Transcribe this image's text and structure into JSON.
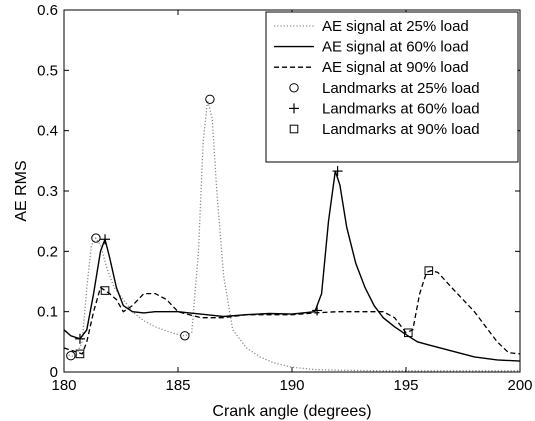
{
  "chart_data": {
    "type": "line",
    "xlabel": "Crank angle (degrees)",
    "ylabel": "AE RMS",
    "xlim": [
      180,
      200
    ],
    "ylim": [
      0,
      0.6
    ],
    "xticks": [
      180,
      185,
      190,
      195,
      200
    ],
    "yticks": [
      0,
      0.1,
      0.2,
      0.3,
      0.4,
      0.5,
      0.6
    ],
    "grid": false,
    "legend_position": "top-right",
    "series": [
      {
        "name": "AE signal at 25% load",
        "style": "dotted",
        "color": "#888888",
        "x": [
          180.2,
          180.5,
          180.8,
          181.0,
          181.2,
          181.4,
          181.6,
          181.9,
          182.2,
          182.6,
          183.0,
          183.5,
          184.0,
          184.5,
          185.0,
          185.3,
          185.6,
          185.9,
          186.1,
          186.3,
          186.5,
          186.7,
          187.0,
          187.4,
          188.0,
          188.6,
          189.2,
          190.0,
          191.0,
          192.0,
          194.0,
          196.0,
          198.0,
          200.0
        ],
        "y": [
          0.028,
          0.025,
          0.05,
          0.14,
          0.21,
          0.222,
          0.21,
          0.17,
          0.14,
          0.12,
          0.1,
          0.085,
          0.075,
          0.068,
          0.062,
          0.06,
          0.065,
          0.2,
          0.38,
          0.45,
          0.42,
          0.3,
          0.16,
          0.07,
          0.04,
          0.025,
          0.015,
          0.008,
          0.004,
          0.003,
          0.002,
          0.002,
          0.002,
          0.002
        ]
      },
      {
        "name": "AE signal at 60% load",
        "style": "solid",
        "color": "#000000",
        "x": [
          180.0,
          180.3,
          180.7,
          181.0,
          181.3,
          181.6,
          181.8,
          182.0,
          182.3,
          182.6,
          183.0,
          183.5,
          184.0,
          184.5,
          185.0,
          185.5,
          186.0,
          186.5,
          187.0,
          188.0,
          189.0,
          190.0,
          191.0,
          191.3,
          191.6,
          191.9,
          192.1,
          192.4,
          192.8,
          193.2,
          193.6,
          194.0,
          194.5,
          195.0,
          195.5,
          196.0,
          197.0,
          198.0,
          199.0,
          200.0
        ],
        "y": [
          0.07,
          0.06,
          0.055,
          0.07,
          0.13,
          0.2,
          0.22,
          0.19,
          0.14,
          0.11,
          0.1,
          0.098,
          0.1,
          0.1,
          0.1,
          0.098,
          0.096,
          0.094,
          0.092,
          0.095,
          0.097,
          0.096,
          0.1,
          0.13,
          0.25,
          0.333,
          0.31,
          0.24,
          0.18,
          0.14,
          0.11,
          0.09,
          0.075,
          0.062,
          0.05,
          0.045,
          0.035,
          0.025,
          0.02,
          0.018
        ]
      },
      {
        "name": "AE signal at 90% load",
        "style": "dashed",
        "color": "#000000",
        "x": [
          180.0,
          180.4,
          180.8,
          181.0,
          181.3,
          181.6,
          181.8,
          182.0,
          182.3,
          182.6,
          183.0,
          183.5,
          184.0,
          184.5,
          185.0,
          185.5,
          186.0,
          186.5,
          187.0,
          188.0,
          189.0,
          190.0,
          191.0,
          192.0,
          193.0,
          194.0,
          194.5,
          195.0,
          195.3,
          195.6,
          195.9,
          196.1,
          196.4,
          197.0,
          197.5,
          198.0,
          198.5,
          199.0,
          199.5,
          200.0
        ],
        "y": [
          0.04,
          0.035,
          0.03,
          0.05,
          0.1,
          0.14,
          0.135,
          0.13,
          0.12,
          0.1,
          0.11,
          0.13,
          0.13,
          0.12,
          0.1,
          0.095,
          0.09,
          0.09,
          0.09,
          0.095,
          0.095,
          0.095,
          0.098,
          0.1,
          0.1,
          0.1,
          0.09,
          0.065,
          0.07,
          0.13,
          0.165,
          0.168,
          0.165,
          0.14,
          0.12,
          0.1,
          0.075,
          0.05,
          0.032,
          0.03
        ]
      }
    ],
    "landmarks": [
      {
        "name": "Landmarks at 25% load",
        "marker": "circle",
        "points": [
          [
            180.3,
            0.027
          ],
          [
            181.4,
            0.222
          ],
          [
            185.3,
            0.06
          ],
          [
            186.4,
            0.452
          ]
        ]
      },
      {
        "name": "Landmarks at 60% load",
        "marker": "plus",
        "points": [
          [
            180.7,
            0.055
          ],
          [
            181.8,
            0.22
          ],
          [
            191.1,
            0.102
          ],
          [
            192.0,
            0.333
          ]
        ]
      },
      {
        "name": "Landmarks at 90% load",
        "marker": "square",
        "points": [
          [
            180.7,
            0.03
          ],
          [
            181.8,
            0.135
          ],
          [
            195.1,
            0.065
          ],
          [
            196.0,
            0.168
          ]
        ]
      }
    ]
  }
}
